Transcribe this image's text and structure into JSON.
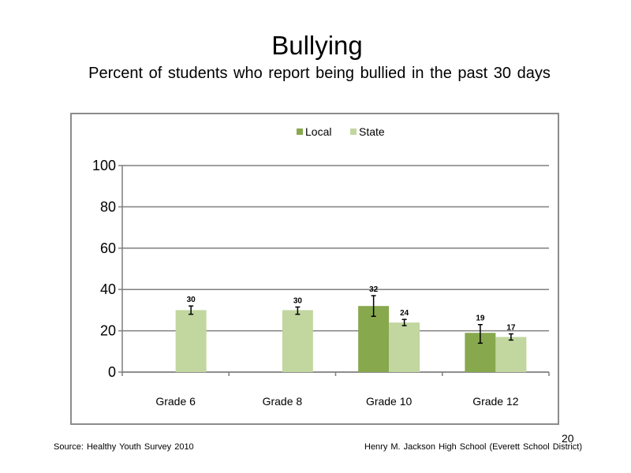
{
  "slide": {
    "title": "Bullying",
    "subtitle": "Percent of students who report being bullied in the past 30 days",
    "source": "Source: Healthy Youth Survey 2010",
    "school": "Henry M. Jackson High School (Everett School District)",
    "page_number": "20"
  },
  "chart_data": {
    "type": "bar",
    "title": "",
    "xlabel": "",
    "ylabel": "",
    "ylim": [
      0,
      100
    ],
    "yticks": [
      0,
      20,
      40,
      60,
      80,
      100
    ],
    "grid": true,
    "legend_position": "top-center",
    "categories": [
      "Grade 6",
      "Grade 8",
      "Grade 10",
      "Grade 12"
    ],
    "series": [
      {
        "name": "Local",
        "color": "#88a84e",
        "values": [
          null,
          null,
          32,
          19
        ],
        "labels": [
          "",
          "",
          "32",
          "19"
        ],
        "error_low": [
          null,
          null,
          27,
          14
        ],
        "error_high": [
          null,
          null,
          37,
          23
        ]
      },
      {
        "name": "State",
        "color": "#c2d6a0",
        "values": [
          30,
          30,
          24,
          17
        ],
        "labels": [
          "30",
          "30",
          "24",
          "17"
        ],
        "error_low": [
          28,
          28,
          22.5,
          15.5
        ],
        "error_high": [
          32,
          31.5,
          25.5,
          18.5
        ]
      }
    ]
  }
}
